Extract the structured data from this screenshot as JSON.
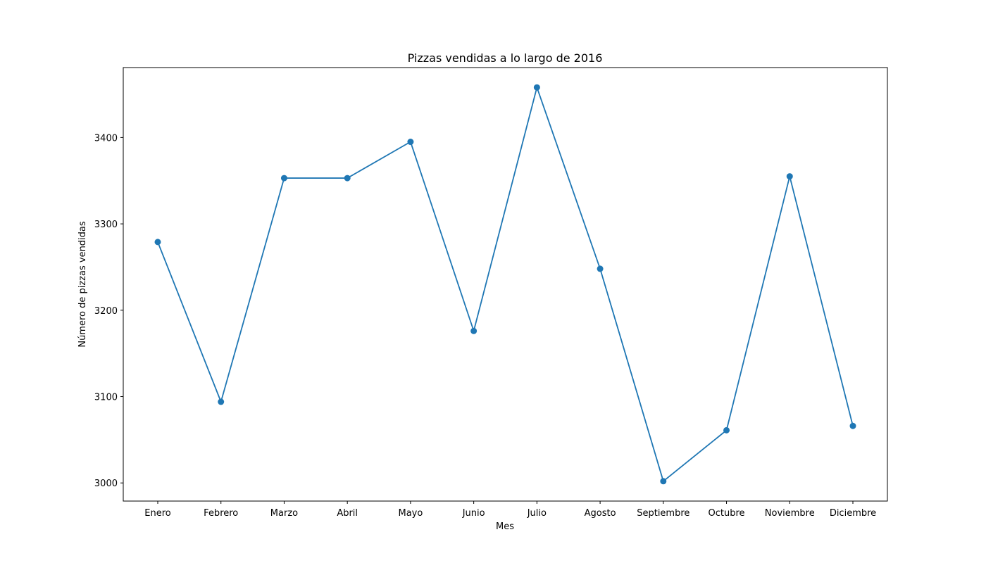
{
  "chart_data": {
    "type": "line",
    "title": "Pizzas vendidas a lo largo de 2016",
    "xlabel": "Mes",
    "ylabel": "Número de pizzas vendidas",
    "categories": [
      "Enero",
      "Febrero",
      "Marzo",
      "Abril",
      "Mayo",
      "Junio",
      "Julio",
      "Agosto",
      "Septiembre",
      "Octubre",
      "Noviembre",
      "Diciembre"
    ],
    "series": [
      {
        "values": [
          3279,
          3094,
          3353,
          3353,
          3395,
          3176,
          3458,
          3248,
          3002,
          3061,
          3355,
          3066
        ],
        "color": "#1f77b4",
        "marker": "circle"
      }
    ],
    "yticks": [
      3000,
      3100,
      3200,
      3300,
      3400
    ],
    "ylim": [
      2979,
      3481
    ],
    "grid": false,
    "legend": "none"
  }
}
